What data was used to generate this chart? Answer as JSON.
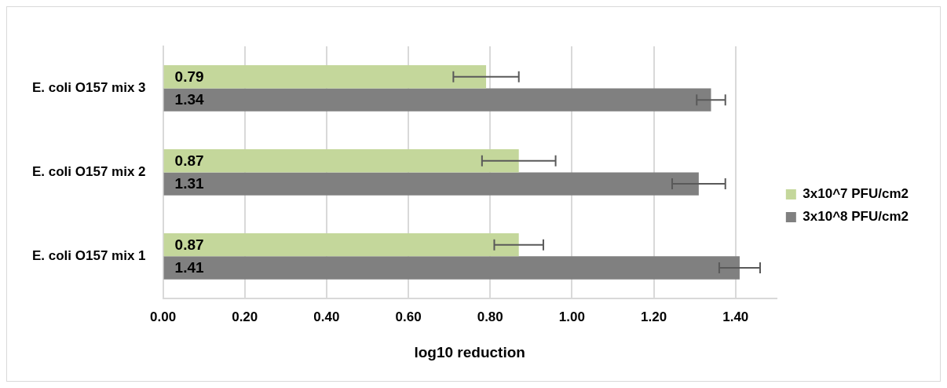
{
  "chart_data": {
    "type": "bar",
    "orientation": "horizontal",
    "categories": [
      "E. coli O157 mix 3",
      "E. coli O157 mix 2",
      "E. coli O157 mix 1"
    ],
    "series": [
      {
        "name": "3x10^7 PFU/cm2",
        "color": "#c4d79b",
        "values": [
          0.79,
          0.87,
          0.87
        ],
        "errors": [
          0.08,
          0.09,
          0.06
        ]
      },
      {
        "name": "3x10^8 PFU/cm2",
        "color": "#808080",
        "values": [
          1.34,
          1.31,
          1.41
        ],
        "errors": [
          0.035,
          0.065,
          0.05
        ]
      }
    ],
    "xlabel": "log10 reduction",
    "xlim": [
      0,
      1.5
    ],
    "xticks": [
      {
        "value": 0,
        "label": "0.00"
      },
      {
        "value": 0.2,
        "label": "0.20"
      },
      {
        "value": 0.4,
        "label": "0.40"
      },
      {
        "value": 0.6,
        "label": "0.60"
      },
      {
        "value": 0.8,
        "label": "0.80"
      },
      {
        "value": 1,
        "label": "1.00"
      },
      {
        "value": 1.2,
        "label": "1.20"
      },
      {
        "value": 1.4,
        "label": "1.40"
      }
    ],
    "grid": "x",
    "legend": "right",
    "data_labels": true
  }
}
